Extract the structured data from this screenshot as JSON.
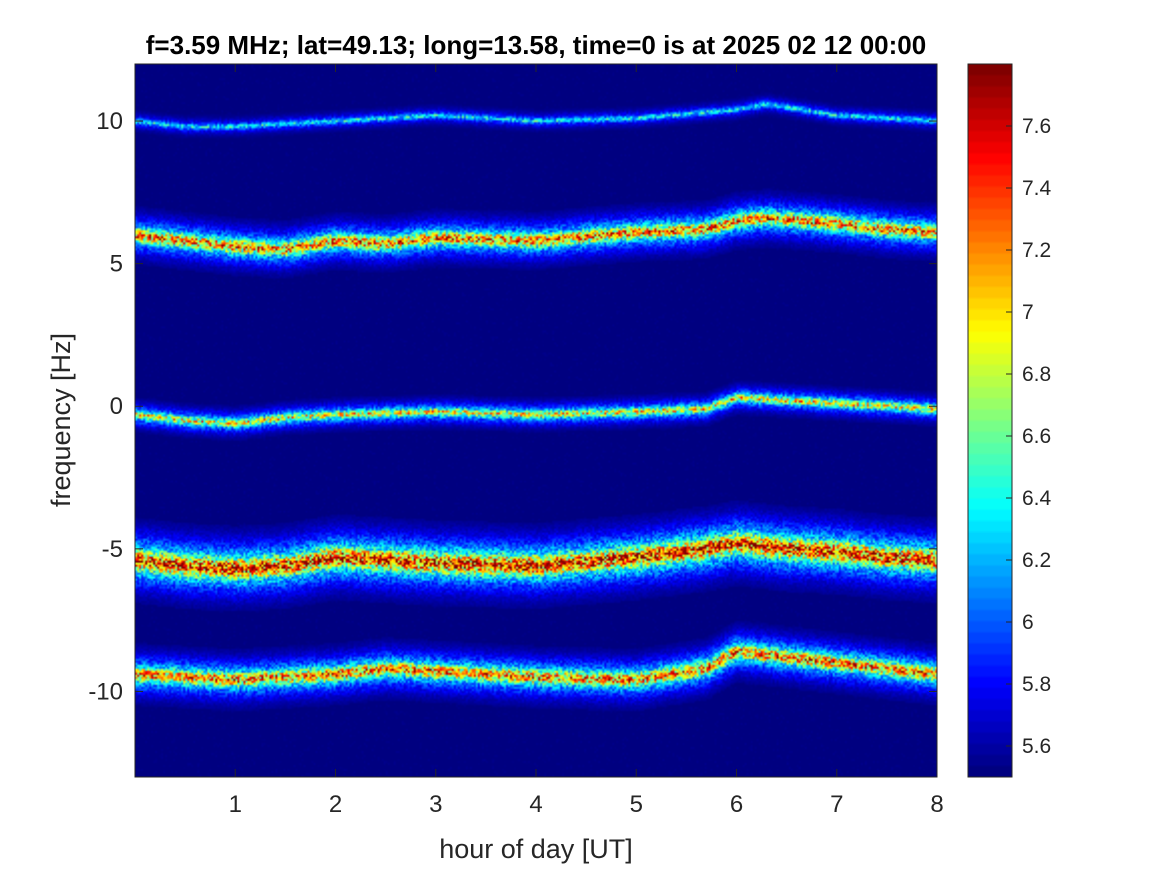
{
  "chart_data": {
    "type": "heatmap",
    "title": "f=3.59 MHz;  lat=49.13; long=13.58, time=0 is at 2025 02 12 00:00",
    "xlabel": "hour of day [UT]",
    "ylabel": "frequency [Hz]",
    "xlim": [
      0,
      8
    ],
    "ylim": [
      -13,
      12
    ],
    "xticks": [
      1,
      2,
      3,
      4,
      5,
      6,
      7,
      8
    ],
    "xtick_labels": [
      "1",
      "2",
      "3",
      "4",
      "5",
      "6",
      "7",
      "8"
    ],
    "yticks": [
      10,
      5,
      0,
      -5,
      -10
    ],
    "ytick_labels": [
      "10",
      "5",
      "0",
      "-5",
      "-10"
    ],
    "colormap": "jet",
    "background_color": "#00008f",
    "colorbar": {
      "range": [
        5.5,
        7.8
      ],
      "ticks": [
        7.6,
        7.4,
        7.2,
        7,
        6.8,
        6.6,
        6.4,
        6.2,
        6,
        5.8,
        5.6
      ],
      "tick_labels": [
        "7.6",
        "7.4",
        "7.2",
        "7",
        "6.8",
        "6.6",
        "6.4",
        "6.2",
        "6",
        "5.8",
        "5.6"
      ]
    },
    "bands": [
      {
        "center": [
          [
            0,
            10.0
          ],
          [
            0.5,
            9.8
          ],
          [
            1,
            9.8
          ],
          [
            2,
            10.0
          ],
          [
            3,
            10.2
          ],
          [
            4,
            10.0
          ],
          [
            5,
            10.1
          ],
          [
            6,
            10.4
          ],
          [
            6.3,
            10.6
          ],
          [
            7,
            10.2
          ],
          [
            8,
            10.0
          ]
        ],
        "width": 0.6,
        "peak": 6.5
      },
      {
        "center": [
          [
            0,
            6.0
          ],
          [
            0.5,
            5.8
          ],
          [
            1,
            5.6
          ],
          [
            1.5,
            5.5
          ],
          [
            2,
            5.8
          ],
          [
            2.5,
            5.7
          ],
          [
            3,
            5.9
          ],
          [
            4,
            5.8
          ],
          [
            5,
            6.1
          ],
          [
            5.7,
            6.2
          ],
          [
            6,
            6.5
          ],
          [
            6.3,
            6.6
          ],
          [
            7,
            6.4
          ],
          [
            7.5,
            6.2
          ],
          [
            8,
            6.1
          ]
        ],
        "width": 1.5,
        "peak": 7.5
      },
      {
        "center": [
          [
            0,
            -0.3
          ],
          [
            0.5,
            -0.5
          ],
          [
            1,
            -0.6
          ],
          [
            1.5,
            -0.4
          ],
          [
            2,
            -0.3
          ],
          [
            3,
            -0.2
          ],
          [
            4,
            -0.3
          ],
          [
            5,
            -0.2
          ],
          [
            5.7,
            -0.1
          ],
          [
            6,
            0.3
          ],
          [
            6.5,
            0.2
          ],
          [
            7,
            0.1
          ],
          [
            8,
            -0.1
          ]
        ],
        "width": 0.9,
        "peak": 7.2
      },
      {
        "center": [
          [
            0,
            -5.4
          ],
          [
            0.5,
            -5.6
          ],
          [
            1,
            -5.7
          ],
          [
            1.5,
            -5.6
          ],
          [
            2,
            -5.3
          ],
          [
            2.5,
            -5.4
          ],
          [
            3,
            -5.5
          ],
          [
            4,
            -5.6
          ],
          [
            5,
            -5.3
          ],
          [
            5.7,
            -5.0
          ],
          [
            6,
            -4.8
          ],
          [
            6.5,
            -5.0
          ],
          [
            7,
            -5.1
          ],
          [
            7.5,
            -5.3
          ],
          [
            8,
            -5.4
          ]
        ],
        "width": 2.2,
        "peak": 7.8
      },
      {
        "center": [
          [
            0,
            -9.4
          ],
          [
            0.5,
            -9.5
          ],
          [
            1,
            -9.6
          ],
          [
            1.5,
            -9.5
          ],
          [
            2,
            -9.4
          ],
          [
            2.5,
            -9.2
          ],
          [
            3,
            -9.3
          ],
          [
            4,
            -9.5
          ],
          [
            5,
            -9.6
          ],
          [
            5.7,
            -9.2
          ],
          [
            6,
            -8.6
          ],
          [
            6.5,
            -8.8
          ],
          [
            7,
            -9.0
          ],
          [
            7.5,
            -9.2
          ],
          [
            8,
            -9.4
          ]
        ],
        "width": 1.6,
        "peak": 7.5
      }
    ]
  }
}
